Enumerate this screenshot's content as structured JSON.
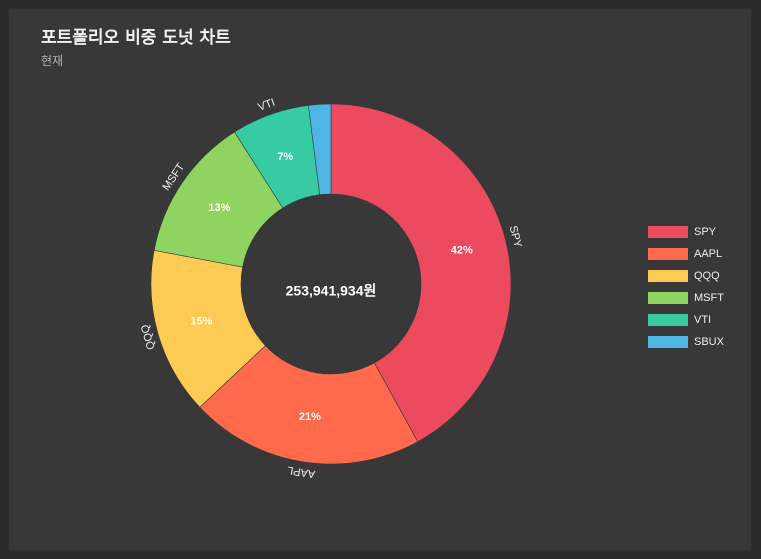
{
  "title": "포트폴리오 비중 도넛 차트",
  "subtitle": "현재",
  "center_label": "253,941,934원",
  "chart_data": {
    "type": "pie",
    "variant": "doughnut",
    "categories": [
      "SPY",
      "AAPL",
      "QQQ",
      "MSFT",
      "VTI",
      "SBUX"
    ],
    "values": [
      42,
      21,
      15,
      13,
      7,
      2
    ],
    "data_labels": [
      "42%",
      "21%",
      "15%",
      "13%",
      "7%",
      ""
    ],
    "colors": [
      "#ec4a5f",
      "#fe6a4b",
      "#fdcb53",
      "#8fd461",
      "#36cba3",
      "#4eb6e5"
    ],
    "legend_position": "right",
    "unit": "%"
  }
}
